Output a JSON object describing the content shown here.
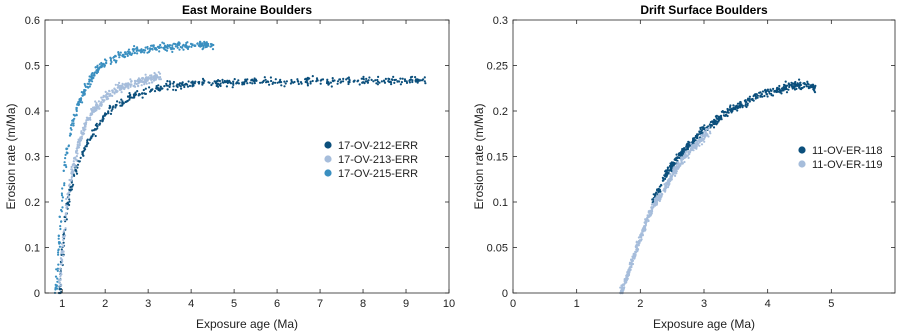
{
  "chart_data": [
    {
      "type": "scatter",
      "title": "East Moraine Boulders",
      "xlabel": "Exposure age (Ma)",
      "ylabel": "Erosion rate (m/Ma)",
      "xlim": [
        0.6,
        10
      ],
      "ylim": [
        0,
        0.6
      ],
      "xticks": [
        "1",
        "2",
        "3",
        "4",
        "5",
        "6",
        "7",
        "8",
        "9",
        "10"
      ],
      "xtick_values": [
        1,
        2,
        3,
        4,
        5,
        6,
        7,
        8,
        9,
        10
      ],
      "yticks": [
        "0",
        "0.1",
        "0.2",
        "0.3",
        "0.4",
        "0.5",
        "0.6"
      ],
      "ytick_values": [
        0,
        0.1,
        0.2,
        0.3,
        0.4,
        0.5,
        0.6
      ],
      "grid": false,
      "legend_position": "right",
      "series": [
        {
          "name": "17-OV-212-ERR",
          "color": "#0b4f7c",
          "points": [
            [
              0.95,
              0.0
            ],
            [
              1.0,
              0.08
            ],
            [
              1.1,
              0.18
            ],
            [
              1.2,
              0.23
            ],
            [
              1.35,
              0.28
            ],
            [
              1.5,
              0.31
            ],
            [
              1.7,
              0.35
            ],
            [
              2.0,
              0.39
            ],
            [
              2.3,
              0.415
            ],
            [
              2.6,
              0.43
            ],
            [
              3.0,
              0.445
            ],
            [
              3.5,
              0.455
            ],
            [
              4.0,
              0.46
            ],
            [
              4.5,
              0.462
            ],
            [
              5.0,
              0.463
            ],
            [
              5.5,
              0.464
            ],
            [
              6.0,
              0.465
            ],
            [
              6.5,
              0.466
            ],
            [
              7.0,
              0.466
            ],
            [
              7.5,
              0.466
            ],
            [
              8.0,
              0.467
            ],
            [
              8.5,
              0.467
            ],
            [
              9.0,
              0.467
            ],
            [
              9.5,
              0.468
            ]
          ]
        },
        {
          "name": "17-OV-213-ERR",
          "color": "#a6bddb",
          "points": [
            [
              0.95,
              0.02
            ],
            [
              1.1,
              0.2
            ],
            [
              1.3,
              0.3
            ],
            [
              1.5,
              0.36
            ],
            [
              1.7,
              0.4
            ],
            [
              2.0,
              0.43
            ],
            [
              2.3,
              0.45
            ],
            [
              2.6,
              0.46
            ],
            [
              3.0,
              0.47
            ],
            [
              3.3,
              0.475
            ]
          ]
        },
        {
          "name": "17-OV-215-ERR",
          "color": "#3a8fc0",
          "points": [
            [
              0.85,
              0.0
            ],
            [
              0.95,
              0.15
            ],
            [
              1.05,
              0.27
            ],
            [
              1.2,
              0.36
            ],
            [
              1.4,
              0.42
            ],
            [
              1.6,
              0.46
            ],
            [
              1.8,
              0.49
            ],
            [
              2.0,
              0.505
            ],
            [
              2.3,
              0.52
            ],
            [
              2.6,
              0.53
            ],
            [
              2.9,
              0.535
            ],
            [
              3.3,
              0.54
            ],
            [
              3.8,
              0.545
            ],
            [
              4.5,
              0.545
            ]
          ]
        }
      ]
    },
    {
      "type": "scatter",
      "title": "Drift Surface Boulders",
      "xlabel": "Exposure age (Ma)",
      "ylabel": "Erosion rate (m/Ma)",
      "xlim": [
        0,
        6
      ],
      "ylim": [
        0,
        0.3
      ],
      "xticks": [
        "0",
        "1",
        "2",
        "3",
        "4",
        "5"
      ],
      "xtick_values": [
        0,
        1,
        2,
        3,
        4,
        5
      ],
      "yticks": [
        "0",
        "0.05",
        "0.1",
        "0.15",
        "0.2",
        "0.25",
        "0.3"
      ],
      "ytick_values": [
        0,
        0.05,
        0.1,
        0.15,
        0.2,
        0.25,
        0.3
      ],
      "grid": false,
      "legend_position": "right",
      "series": [
        {
          "name": "11-OV-ER-118",
          "color": "#0b4f7c",
          "points": [
            [
              2.2,
              0.1
            ],
            [
              2.4,
              0.13
            ],
            [
              2.6,
              0.15
            ],
            [
              2.8,
              0.165
            ],
            [
              3.0,
              0.18
            ],
            [
              3.2,
              0.19
            ],
            [
              3.4,
              0.2
            ],
            [
              3.6,
              0.207
            ],
            [
              3.8,
              0.214
            ],
            [
              4.0,
              0.22
            ],
            [
              4.3,
              0.226
            ],
            [
              4.6,
              0.23
            ],
            [
              4.75,
              0.225
            ]
          ]
        },
        {
          "name": "11-OV-ER-119",
          "color": "#a6bddb",
          "points": [
            [
              1.7,
              0.0
            ],
            [
              1.8,
              0.02
            ],
            [
              1.9,
              0.04
            ],
            [
              2.0,
              0.06
            ],
            [
              2.1,
              0.08
            ],
            [
              2.2,
              0.095
            ],
            [
              2.35,
              0.11
            ],
            [
              2.5,
              0.13
            ],
            [
              2.7,
              0.15
            ],
            [
              2.9,
              0.165
            ],
            [
              3.1,
              0.18
            ]
          ]
        }
      ]
    }
  ]
}
